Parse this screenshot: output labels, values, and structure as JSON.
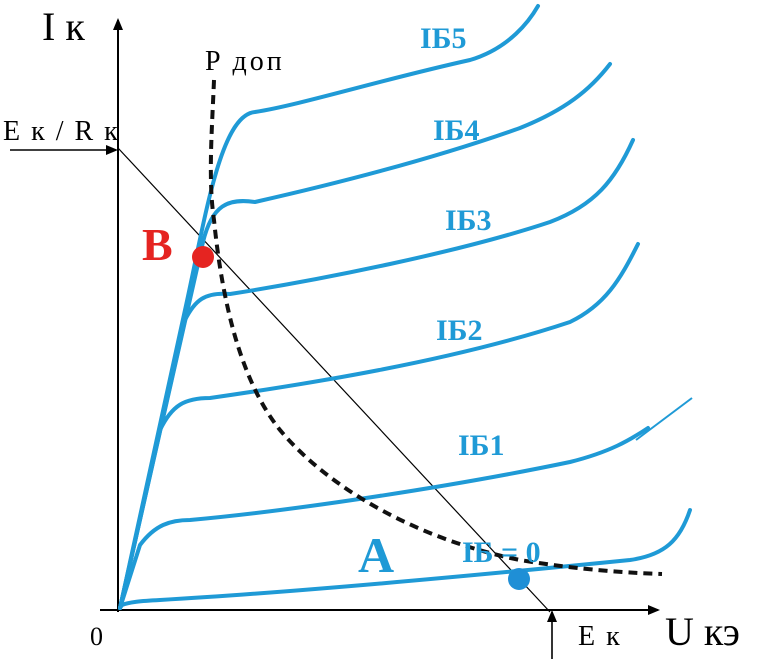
{
  "axes": {
    "y_label": "I к",
    "x_label": "U кэ",
    "origin_label": "0",
    "y_intercept_label": "E к / R к",
    "x_intercept_label": "E к"
  },
  "power_curve_label": "P доп",
  "curve_labels": [
    "IБ5",
    "IБ4",
    "IБ3",
    "IБ2",
    "IБ1",
    "IБ = 0"
  ],
  "points": {
    "a_label": "A",
    "b_label": "B"
  },
  "colors": {
    "curve": "#1f9ad6",
    "point_b": "#e52421",
    "point_a": "#1f8fd6",
    "point_a_label": "#1f9ad6",
    "point_b_label": "#e52421",
    "ink": "#000000"
  }
}
